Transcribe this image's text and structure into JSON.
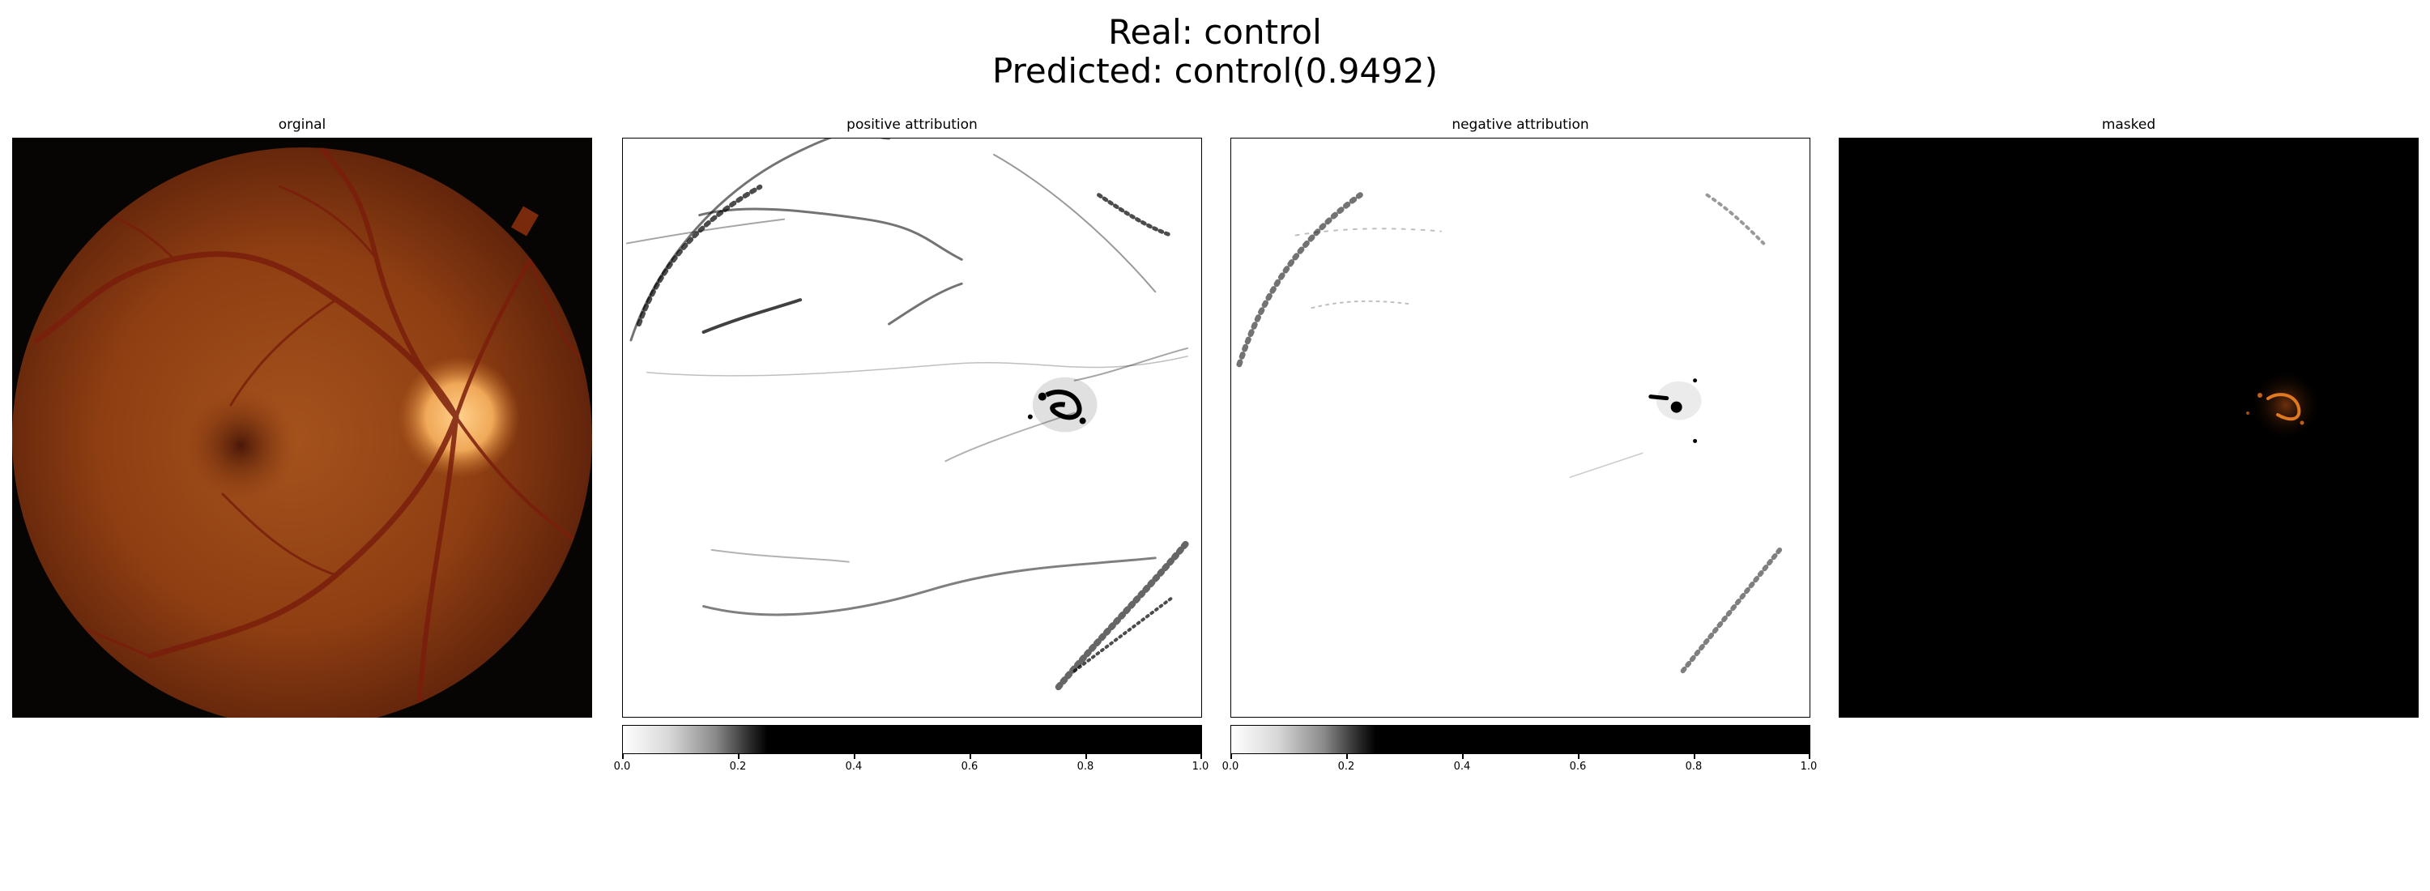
{
  "figure": {
    "title_line1": "Real: control",
    "title_line2": "Predicted: control(0.9492)"
  },
  "panels": [
    {
      "title": "orginal"
    },
    {
      "title": "positive attribution"
    },
    {
      "title": "negative attribution"
    },
    {
      "title": "masked"
    }
  ],
  "colorbar": {
    "ticks": [
      "0.0",
      "0.2",
      "0.4",
      "0.6",
      "0.8",
      "1.0"
    ],
    "range": [
      0.0,
      1.0
    ],
    "colormap": "gray_r"
  },
  "colors": {
    "fundus_background": "#8a3a10",
    "vessel": "#7a1e0c",
    "optic_disc": "#f0a858",
    "mask_highlight": "#e07820"
  }
}
